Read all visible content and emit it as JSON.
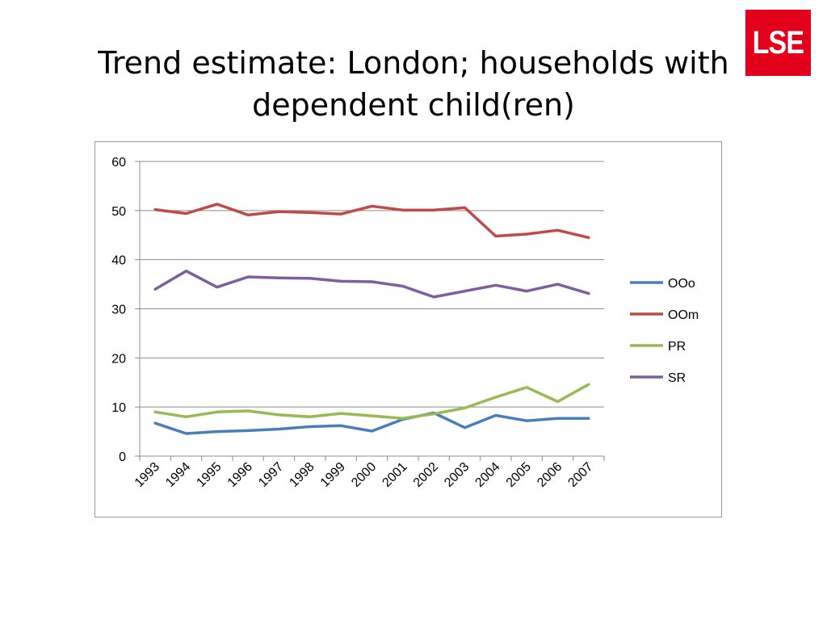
{
  "slide": {
    "title_line1": "Trend estimate: London; households with",
    "title_line2": "dependent child(ren)",
    "logo_text": "LSE",
    "logo_color": "#e3001b"
  },
  "chart_data": {
    "type": "line",
    "title": "",
    "xlabel": "",
    "ylabel": "",
    "categories": [
      "1993",
      "1994",
      "1995",
      "1996",
      "1997",
      "1998",
      "1999",
      "2000",
      "2001",
      "2002",
      "2003",
      "2004",
      "2005",
      "2006",
      "2007"
    ],
    "ylim": [
      0,
      60
    ],
    "yticks": [
      0,
      10,
      20,
      30,
      40,
      50,
      60
    ],
    "grid": true,
    "legend_position": "right",
    "series": [
      {
        "name": "OOo",
        "color": "#4a7ebb",
        "values": [
          6.7,
          4.6,
          5.0,
          5.2,
          5.5,
          6.0,
          6.2,
          5.1,
          7.5,
          8.8,
          5.8,
          8.3,
          7.2,
          7.7,
          7.7
        ]
      },
      {
        "name": "OOm",
        "color": "#be4b48",
        "values": [
          50.2,
          49.4,
          51.3,
          49.1,
          49.8,
          49.6,
          49.3,
          50.9,
          50.1,
          50.1,
          50.6,
          44.8,
          45.2,
          46.0,
          44.5
        ]
      },
      {
        "name": "PR",
        "color": "#98b954",
        "values": [
          9.0,
          8.0,
          9.0,
          9.2,
          8.4,
          8.0,
          8.7,
          8.2,
          7.7,
          8.6,
          9.8,
          12.0,
          14.0,
          11.1,
          14.6
        ]
      },
      {
        "name": "SR",
        "color": "#7d5fa0",
        "values": [
          34.0,
          37.7,
          34.4,
          36.5,
          36.3,
          36.2,
          35.6,
          35.5,
          34.6,
          32.4,
          33.6,
          34.8,
          33.6,
          35.0,
          33.1
        ]
      }
    ]
  }
}
